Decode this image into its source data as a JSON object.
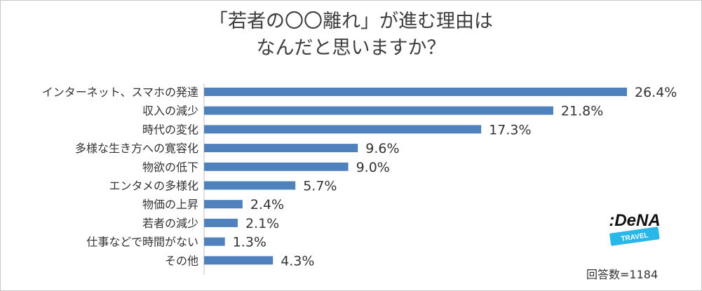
{
  "chart_data": {
    "type": "bar",
    "orientation": "horizontal",
    "title_line1": "「若者の〇〇離れ」が進む理由は",
    "title_line2": "なんだと思いますか？",
    "categories": [
      "インターネット、スマホの発達",
      "収入の減少",
      "時代の変化",
      "多様な生き方への寛容化",
      "物欲の低下",
      "エンタメの多様化",
      "物価の上昇",
      "若者の減少",
      "仕事などで時間がない",
      "その他"
    ],
    "values": [
      26.4,
      21.8,
      17.3,
      9.6,
      9.0,
      5.7,
      2.4,
      2.1,
      1.3,
      4.3
    ],
    "value_labels": [
      "26.4%",
      "21.8%",
      "17.3%",
      "9.6%",
      "9.0%",
      "5.7%",
      "2.4%",
      "2.1%",
      "1.3%",
      "4.3%"
    ],
    "xlim": [
      0,
      26.4
    ],
    "grid": false,
    "bar_color": "#4f81bd"
  },
  "footer": {
    "respondents": "回答数=1184"
  },
  "logo": {
    "brand_text": ":DeNA",
    "sub_text": "TRAVEL",
    "brand_color": "#111111",
    "badge_color": "#29b6e8"
  }
}
